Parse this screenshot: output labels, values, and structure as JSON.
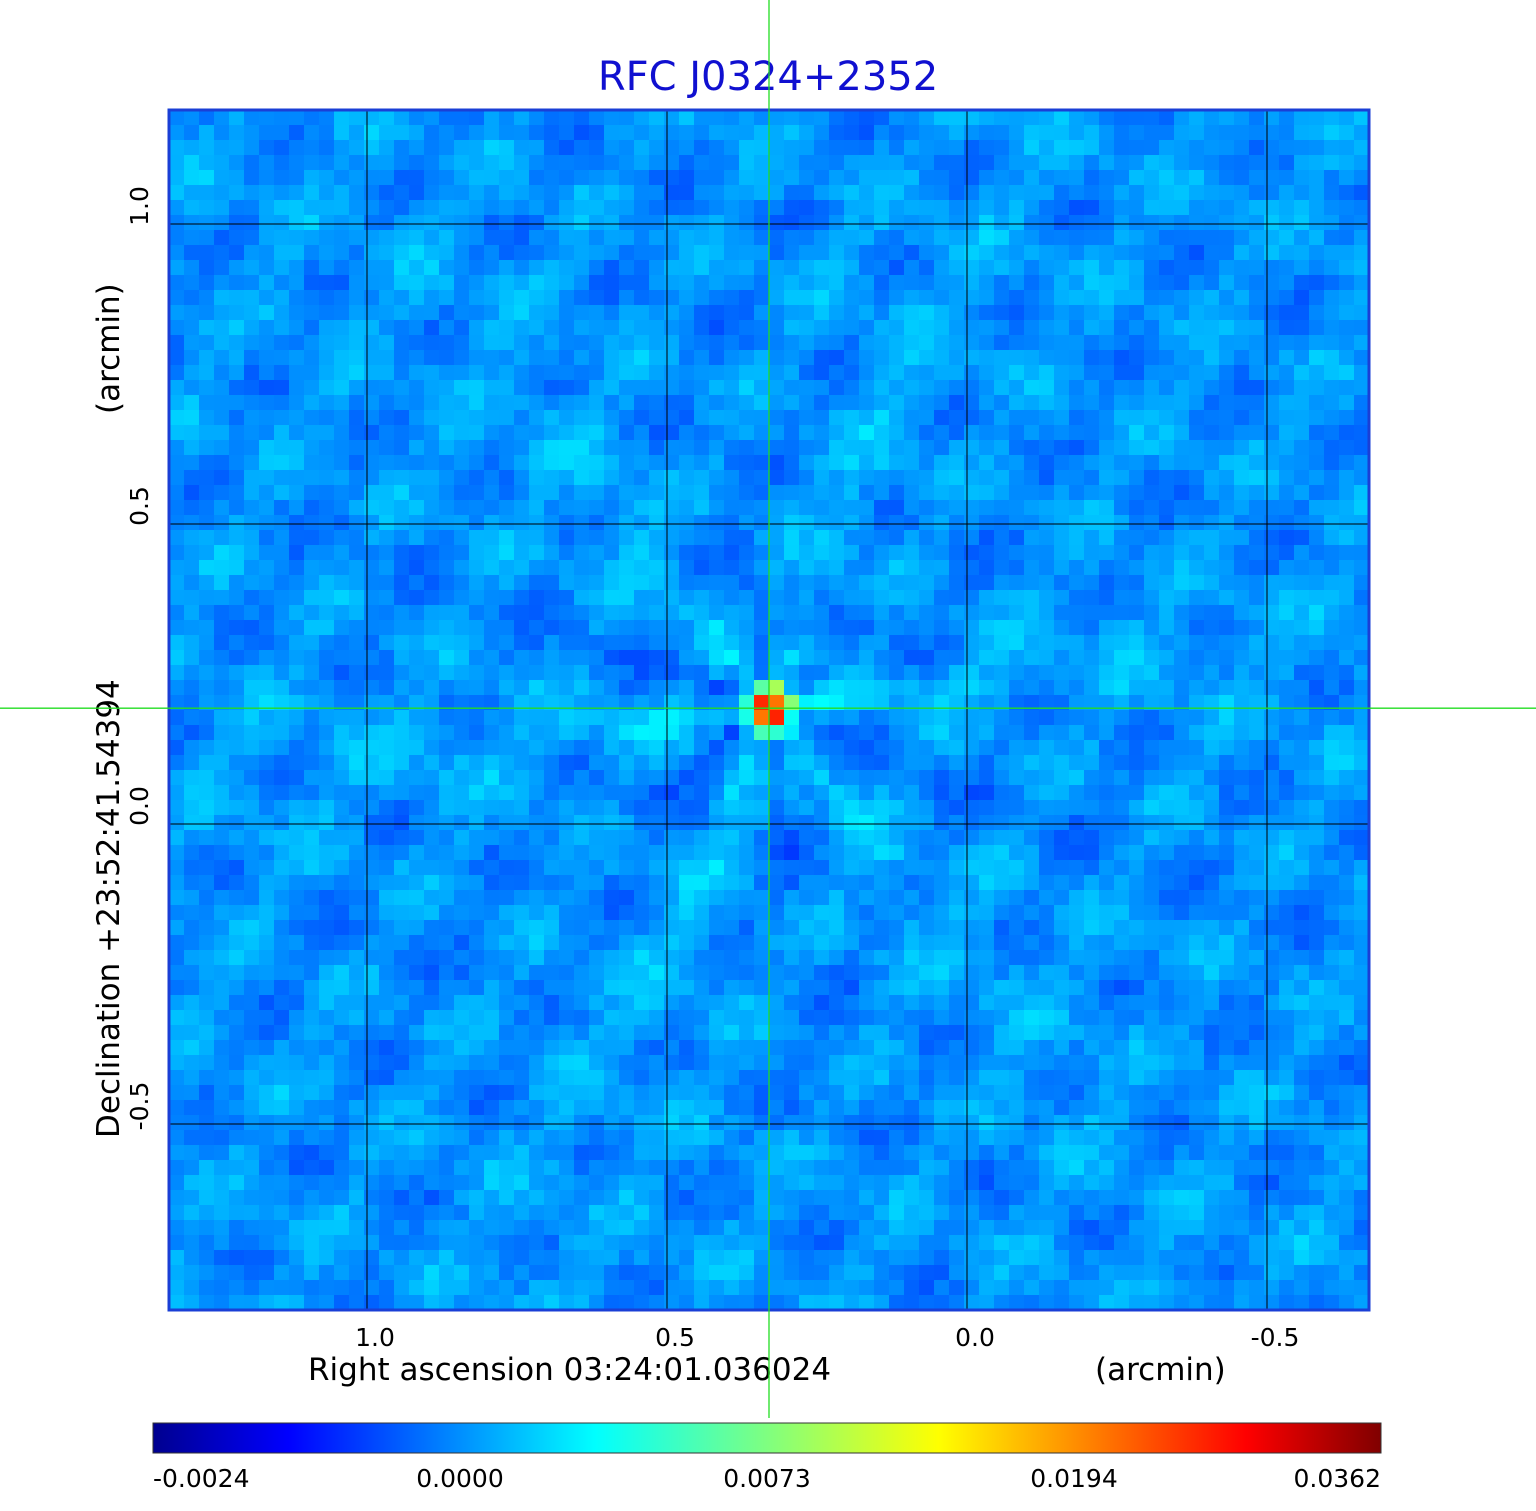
{
  "chart_data": {
    "type": "heatmap",
    "title": "RFC J0324+2352",
    "xlabel": "Right ascension  03:24:01.036024",
    "xunit": "(arcmin)",
    "ylabel": "Declination  +23:52:41.54394",
    "yunit": "(arcmin)",
    "xlim": [
      1.33,
      -0.67
    ],
    "ylim": [
      -0.81,
      1.19
    ],
    "x_ticks": [
      1.0,
      0.5,
      0.0,
      -0.5
    ],
    "x_tick_labels": [
      "1.0",
      "0.5",
      "0.0",
      "-0.5"
    ],
    "y_ticks": [
      1.0,
      0.5,
      0.0,
      -0.5
    ],
    "y_tick_labels": [
      "1.0",
      "0.5",
      "0.0",
      "-0.5"
    ],
    "grid": true,
    "crosshair": {
      "x": 0.33,
      "y": 0.193
    },
    "peak": {
      "x": 0.33,
      "y": 0.193,
      "value": 0.0362
    },
    "colorbar": {
      "ticks": [
        -0.0024,
        0.0,
        0.0073,
        0.0194,
        0.0362
      ],
      "tick_labels": [
        "-0.0024",
        "0.0000",
        "0.0073",
        "0.0194",
        "0.0362"
      ],
      "colormap": "jet"
    },
    "colors": {
      "title": "#1010d0",
      "frame": "#1a3fd6",
      "grid": "#000000",
      "crosshair": "#22dd22"
    }
  }
}
